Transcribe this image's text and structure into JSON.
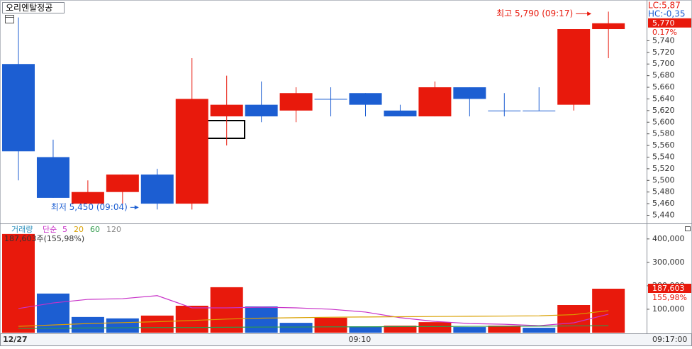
{
  "title": "오리엔탈정공",
  "chart_data": [
    {
      "type": "candlestick",
      "lc_label": "LC:5,87",
      "hc_label": "HC:-0,35",
      "high_note": "최고 5,790 (09:17)",
      "low_note": "최저 5,450 (09:04)",
      "last_label": "5,770",
      "change_label": "0.17%",
      "categories": [
        "12/27",
        null,
        null,
        null,
        null,
        null,
        null,
        null,
        null,
        null,
        "09:10",
        null,
        null,
        null,
        null,
        null,
        null,
        null
      ],
      "current_time": "09:17:00",
      "open": [
        5700,
        5540,
        5460,
        5480,
        5510,
        5460,
        5610,
        5630,
        5620,
        5640,
        5650,
        5620,
        5610,
        5660,
        5620,
        5620,
        5630,
        5760
      ],
      "high": [
        5780,
        5570,
        5500,
        5510,
        5520,
        5710,
        5680,
        5670,
        5660,
        5660,
        5650,
        5630,
        5670,
        5660,
        5650,
        5660,
        5760,
        5790
      ],
      "low": [
        5500,
        5470,
        5460,
        5460,
        5450,
        5450,
        5560,
        5600,
        5600,
        5610,
        5610,
        5610,
        5610,
        5610,
        5610,
        5620,
        5620,
        5710
      ],
      "close": [
        5550,
        5470,
        5480,
        5510,
        5460,
        5640,
        5630,
        5610,
        5650,
        5640,
        5630,
        5610,
        5660,
        5640,
        5620,
        5620,
        5760,
        5770
      ],
      "up_color": "#e8190c",
      "down_color": "#1c5ed2",
      "ylim": [
        5426,
        5810
      ],
      "yticks": [
        {
          "value": 5440,
          "label": "5,440"
        },
        {
          "value": 5460,
          "label": "5,460"
        },
        {
          "value": 5480,
          "label": "5,480"
        },
        {
          "value": 5500,
          "label": "5,500"
        },
        {
          "value": 5520,
          "label": "5,520"
        },
        {
          "value": 5540,
          "label": "5,540"
        },
        {
          "value": 5560,
          "label": "5,560"
        },
        {
          "value": 5580,
          "label": "5,580"
        },
        {
          "value": 5600,
          "label": "5,600"
        },
        {
          "value": 5620,
          "label": "5,620"
        },
        {
          "value": 5640,
          "label": "5,640"
        },
        {
          "value": 5660,
          "label": "5,660"
        },
        {
          "value": 5680,
          "label": "5,680"
        },
        {
          "value": 5700,
          "label": "5,700"
        },
        {
          "value": 5720,
          "label": "5,720"
        },
        {
          "value": 5740,
          "label": "5,740"
        }
      ]
    },
    {
      "type": "bar",
      "title": "거래량",
      "ma_label": "단순",
      "volume_label": "187,603주(155,98%)",
      "last_label": "187,603",
      "ratio_label": "155,98%",
      "values": [
        421000,
        167000,
        67000,
        61000,
        73000,
        115000,
        194000,
        112000,
        42000,
        64000,
        27000,
        30000,
        45000,
        24000,
        30000,
        21000,
        118000,
        187603
      ],
      "colors": [
        "#e8190c",
        "#1c5ed2",
        "#1c5ed2",
        "#1c5ed2",
        "#e8190c",
        "#e8190c",
        "#e8190c",
        "#1c5ed2",
        "#1c5ed2",
        "#e8190c",
        "#1c5ed2",
        "#e8190c",
        "#e8190c",
        "#1c5ed2",
        "#e8190c",
        "#1c5ed2",
        "#e8190c",
        "#e8190c"
      ],
      "series": [
        {
          "name": "5",
          "color": "#c832c8",
          "values": [
            103000,
            127000,
            142000,
            145000,
            158000,
            106000,
            106000,
            109000,
            106000,
            100000,
            88000,
            64000,
            48000,
            39000,
            36000,
            30000,
            42000,
            79000
          ]
        },
        {
          "name": "20",
          "color": "#d9a000",
          "values": [
            27000,
            33000,
            39000,
            43000,
            47000,
            52000,
            58000,
            62000,
            64000,
            66000,
            67000,
            68000,
            69000,
            70000,
            71000,
            72000,
            77000,
            94000
          ]
        },
        {
          "name": "60",
          "color": "#2e9a4a",
          "values": [
            18000,
            19000,
            20000,
            21000,
            22000,
            22000,
            23000,
            24000,
            24000,
            25000,
            25000,
            26000,
            26000,
            27000,
            27000,
            28000,
            29000,
            30000
          ]
        },
        {
          "name": "120",
          "color": "#888888",
          "values": [
            null,
            null,
            null,
            null,
            null,
            null,
            null,
            null,
            null,
            null,
            null,
            null,
            null,
            null,
            null,
            null,
            null,
            null
          ]
        }
      ],
      "ylim": [
        0,
        460000
      ],
      "yticks": [
        {
          "value": 100000,
          "label": "100,000"
        },
        {
          "value": 200000,
          "label": "200,000"
        },
        {
          "value": 300000,
          "label": "300,000"
        },
        {
          "value": 400000,
          "label": "400,000"
        }
      ]
    }
  ]
}
